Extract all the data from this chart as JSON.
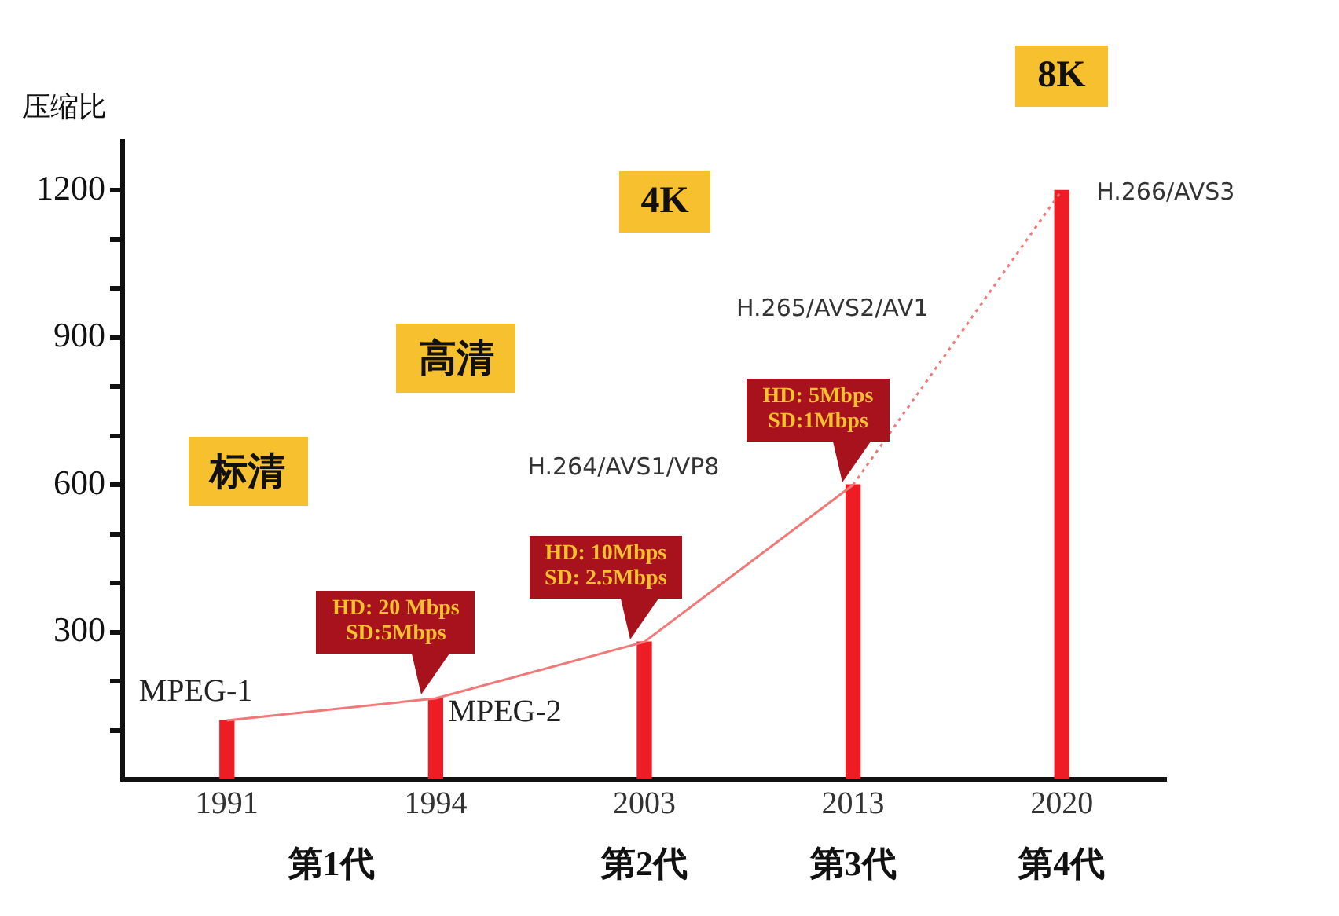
{
  "chart_data": {
    "type": "bar",
    "ylabel": "压缩比",
    "categories": [
      "1991",
      "1994",
      "2003",
      "2013",
      "2020"
    ],
    "series": [
      {
        "color": "#ee1c25",
        "values": [
          120,
          165,
          280,
          600,
          1200
        ]
      },
      {
        "type": "line",
        "color": "#f07878",
        "line_style": "solid",
        "marker": "none",
        "values": [
          120,
          165,
          280,
          600,
          null
        ]
      },
      {
        "type": "line",
        "color": "#f07878",
        "line_style": "dotted",
        "marker": "none",
        "values": [
          null,
          null,
          null,
          600,
          1200
        ]
      }
    ],
    "ylim": [
      0,
      1300
    ],
    "yticks": [
      {
        "value": 100,
        "label": null
      },
      {
        "value": 200,
        "label": null
      },
      300,
      {
        "value": 400,
        "label": null
      },
      {
        "value": 500,
        "label": null
      },
      600,
      {
        "value": 700,
        "label": null
      },
      {
        "value": 800,
        "label": null
      },
      900,
      {
        "value": 1000,
        "label": null
      },
      {
        "value": 1100,
        "label": null
      },
      1200
    ],
    "grid": false,
    "legend": false,
    "annotations": [
      "标清",
      "高清",
      "4K",
      "8K",
      "第1代",
      "第2代",
      "第3代",
      "第4代",
      "H.264/AVS1/VP8",
      "H.265/AVS2/AV1",
      {
        "text": "MPEG-1",
        "x": "1991",
        "y": 120
      },
      {
        "text": "MPEG-2",
        "x": "1994",
        "y": 165
      },
      {
        "text": "H.266/AVS3",
        "x": "2020",
        "y": 1200
      },
      {
        "text": "HD: 20 Mbps\nSD:5Mbps",
        "x": "1994",
        "y": 165
      },
      {
        "text": "HD: 10Mbps\nSD: 2.5Mbps",
        "x": "2003",
        "y": 280
      },
      {
        "text": "HD: 5Mbps\nSD:1Mbps",
        "x": "2013",
        "y": 600
      }
    ]
  }
}
